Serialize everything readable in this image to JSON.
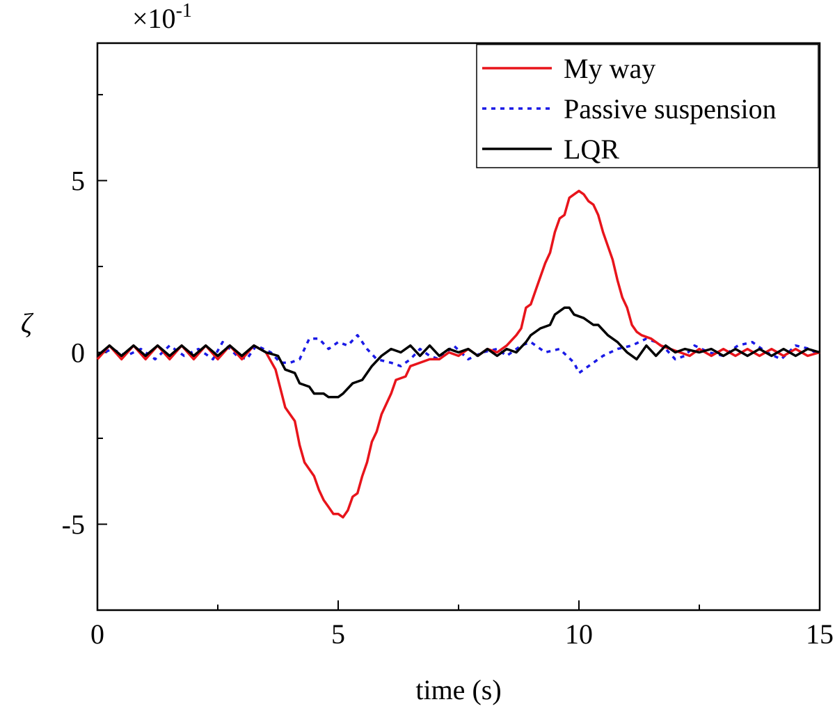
{
  "chart_data": {
    "type": "line",
    "title": "",
    "xlabel": "time (s)",
    "ylabel": "ζ",
    "y_multiplier_base": "×10",
    "y_multiplier_exp": "-1",
    "xlim": [
      0,
      15
    ],
    "ylim": [
      -7.5,
      9.0
    ],
    "x_ticks": [
      0,
      5,
      10,
      15
    ],
    "x_tick_labels": [
      "0",
      "5",
      "10",
      "15"
    ],
    "x_minor_ticks": [
      2.5,
      7.5,
      12.5
    ],
    "y_ticks": [
      -5,
      0,
      5
    ],
    "y_tick_labels": [
      "-5",
      "0",
      "5"
    ],
    "y_minor_ticks": [
      -2.5,
      2.5,
      7.5
    ],
    "grid": false,
    "legend_position": "top-right",
    "series": [
      {
        "name": "My way",
        "color": "#e8141b",
        "style": "solid",
        "points": [
          [
            0,
            -0.2
          ],
          [
            0.25,
            0.2
          ],
          [
            0.5,
            -0.2
          ],
          [
            0.75,
            0.2
          ],
          [
            1.0,
            -0.2
          ],
          [
            1.25,
            0.2
          ],
          [
            1.5,
            -0.2
          ],
          [
            1.75,
            0.2
          ],
          [
            2.0,
            -0.2
          ],
          [
            2.25,
            0.2
          ],
          [
            2.5,
            -0.2
          ],
          [
            2.75,
            0.2
          ],
          [
            3.0,
            -0.2
          ],
          [
            3.25,
            0.2
          ],
          [
            3.5,
            0.0
          ],
          [
            3.7,
            -0.5
          ],
          [
            3.9,
            -1.6
          ],
          [
            4.0,
            -1.8
          ],
          [
            4.1,
            -2.0
          ],
          [
            4.2,
            -2.7
          ],
          [
            4.3,
            -3.2
          ],
          [
            4.4,
            -3.4
          ],
          [
            4.5,
            -3.6
          ],
          [
            4.6,
            -4.0
          ],
          [
            4.7,
            -4.3
          ],
          [
            4.8,
            -4.5
          ],
          [
            4.9,
            -4.7
          ],
          [
            5.0,
            -4.7
          ],
          [
            5.1,
            -4.8
          ],
          [
            5.2,
            -4.6
          ],
          [
            5.3,
            -4.2
          ],
          [
            5.4,
            -4.1
          ],
          [
            5.5,
            -3.6
          ],
          [
            5.6,
            -3.2
          ],
          [
            5.7,
            -2.6
          ],
          [
            5.8,
            -2.3
          ],
          [
            5.9,
            -1.8
          ],
          [
            6.0,
            -1.5
          ],
          [
            6.1,
            -1.2
          ],
          [
            6.2,
            -0.8
          ],
          [
            6.4,
            -0.7
          ],
          [
            6.5,
            -0.4
          ],
          [
            6.7,
            -0.3
          ],
          [
            6.9,
            -0.2
          ],
          [
            7.1,
            -0.2
          ],
          [
            7.3,
            0.0
          ],
          [
            7.5,
            -0.1
          ],
          [
            7.7,
            0.1
          ],
          [
            7.9,
            -0.1
          ],
          [
            8.1,
            0.1
          ],
          [
            8.3,
            0.0
          ],
          [
            8.5,
            0.2
          ],
          [
            8.7,
            0.5
          ],
          [
            8.8,
            0.7
          ],
          [
            8.9,
            1.3
          ],
          [
            9.0,
            1.4
          ],
          [
            9.1,
            1.8
          ],
          [
            9.2,
            2.2
          ],
          [
            9.3,
            2.6
          ],
          [
            9.4,
            2.9
          ],
          [
            9.5,
            3.5
          ],
          [
            9.6,
            3.9
          ],
          [
            9.7,
            4.0
          ],
          [
            9.8,
            4.5
          ],
          [
            9.9,
            4.6
          ],
          [
            10.0,
            4.7
          ],
          [
            10.1,
            4.6
          ],
          [
            10.2,
            4.4
          ],
          [
            10.3,
            4.3
          ],
          [
            10.4,
            4.0
          ],
          [
            10.5,
            3.5
          ],
          [
            10.6,
            3.1
          ],
          [
            10.7,
            2.7
          ],
          [
            10.8,
            2.1
          ],
          [
            10.9,
            1.6
          ],
          [
            11.0,
            1.3
          ],
          [
            11.1,
            0.8
          ],
          [
            11.2,
            0.6
          ],
          [
            11.3,
            0.5
          ],
          [
            11.5,
            0.4
          ],
          [
            11.7,
            0.2
          ],
          [
            11.9,
            0.1
          ],
          [
            12.1,
            0.0
          ],
          [
            12.3,
            -0.1
          ],
          [
            12.5,
            0.1
          ],
          [
            12.75,
            -0.1
          ],
          [
            13.0,
            0.1
          ],
          [
            13.25,
            -0.1
          ],
          [
            13.5,
            0.1
          ],
          [
            13.75,
            -0.1
          ],
          [
            14.0,
            0.1
          ],
          [
            14.25,
            -0.1
          ],
          [
            14.5,
            0.1
          ],
          [
            14.75,
            -0.1
          ],
          [
            15.0,
            0.0
          ]
        ]
      },
      {
        "name": "Passive suspension",
        "color": "#1a1ae6",
        "style": "dotted",
        "points": [
          [
            0,
            -0.1
          ],
          [
            0.3,
            0.1
          ],
          [
            0.6,
            -0.1
          ],
          [
            0.9,
            0.1
          ],
          [
            1.2,
            -0.2
          ],
          [
            1.5,
            0.2
          ],
          [
            1.8,
            -0.1
          ],
          [
            2.1,
            0.1
          ],
          [
            2.4,
            -0.2
          ],
          [
            2.6,
            0.3
          ],
          [
            2.9,
            -0.1
          ],
          [
            3.1,
            -0.2
          ],
          [
            3.3,
            0.2
          ],
          [
            3.6,
            0.0
          ],
          [
            3.8,
            -0.3
          ],
          [
            4.0,
            -0.3
          ],
          [
            4.2,
            -0.2
          ],
          [
            4.4,
            0.4
          ],
          [
            4.6,
            0.4
          ],
          [
            4.8,
            0.1
          ],
          [
            5.0,
            0.3
          ],
          [
            5.2,
            0.2
          ],
          [
            5.4,
            0.5
          ],
          [
            5.6,
            0.1
          ],
          [
            5.8,
            -0.2
          ],
          [
            6.1,
            -0.3
          ],
          [
            6.3,
            -0.4
          ],
          [
            6.5,
            -0.2
          ],
          [
            6.7,
            0.1
          ],
          [
            6.9,
            -0.1
          ],
          [
            7.1,
            -0.2
          ],
          [
            7.4,
            0.2
          ],
          [
            7.7,
            -0.2
          ],
          [
            8.0,
            0.0
          ],
          [
            8.3,
            0.1
          ],
          [
            8.5,
            -0.1
          ],
          [
            8.8,
            0.2
          ],
          [
            9.0,
            0.3
          ],
          [
            9.3,
            0.0
          ],
          [
            9.6,
            0.1
          ],
          [
            9.9,
            -0.3
          ],
          [
            10.0,
            -0.6
          ],
          [
            10.2,
            -0.4
          ],
          [
            10.5,
            -0.1
          ],
          [
            10.8,
            0.1
          ],
          [
            11.1,
            0.2
          ],
          [
            11.4,
            0.4
          ],
          [
            11.6,
            0.3
          ],
          [
            11.8,
            0.1
          ],
          [
            12.0,
            -0.2
          ],
          [
            12.2,
            -0.1
          ],
          [
            12.4,
            0.2
          ],
          [
            12.7,
            0.0
          ],
          [
            13.0,
            -0.1
          ],
          [
            13.3,
            0.2
          ],
          [
            13.6,
            0.3
          ],
          [
            13.9,
            0.0
          ],
          [
            14.2,
            -0.2
          ],
          [
            14.5,
            0.2
          ],
          [
            14.8,
            0.1
          ],
          [
            15.0,
            -0.1
          ]
        ]
      },
      {
        "name": "LQR",
        "color": "#000000",
        "style": "solid",
        "points": [
          [
            0,
            -0.1
          ],
          [
            0.25,
            0.2
          ],
          [
            0.5,
            -0.1
          ],
          [
            0.75,
            0.2
          ],
          [
            1.0,
            -0.1
          ],
          [
            1.25,
            0.2
          ],
          [
            1.5,
            -0.1
          ],
          [
            1.75,
            0.2
          ],
          [
            2.0,
            -0.1
          ],
          [
            2.25,
            0.2
          ],
          [
            2.5,
            -0.1
          ],
          [
            2.75,
            0.2
          ],
          [
            3.0,
            -0.1
          ],
          [
            3.25,
            0.2
          ],
          [
            3.5,
            0.0
          ],
          [
            3.75,
            -0.1
          ],
          [
            3.9,
            -0.5
          ],
          [
            4.1,
            -0.6
          ],
          [
            4.2,
            -0.9
          ],
          [
            4.4,
            -1.0
          ],
          [
            4.5,
            -1.2
          ],
          [
            4.7,
            -1.2
          ],
          [
            4.8,
            -1.3
          ],
          [
            5.0,
            -1.3
          ],
          [
            5.1,
            -1.2
          ],
          [
            5.3,
            -0.9
          ],
          [
            5.5,
            -0.8
          ],
          [
            5.7,
            -0.4
          ],
          [
            5.9,
            -0.1
          ],
          [
            6.1,
            0.1
          ],
          [
            6.3,
            0.0
          ],
          [
            6.5,
            0.2
          ],
          [
            6.7,
            -0.1
          ],
          [
            6.9,
            0.2
          ],
          [
            7.1,
            -0.1
          ],
          [
            7.3,
            0.1
          ],
          [
            7.5,
            0.0
          ],
          [
            7.7,
            0.1
          ],
          [
            7.9,
            -0.1
          ],
          [
            8.1,
            0.1
          ],
          [
            8.3,
            -0.1
          ],
          [
            8.5,
            0.1
          ],
          [
            8.7,
            0.0
          ],
          [
            8.9,
            0.3
          ],
          [
            9.0,
            0.5
          ],
          [
            9.2,
            0.7
          ],
          [
            9.4,
            0.8
          ],
          [
            9.5,
            1.1
          ],
          [
            9.7,
            1.3
          ],
          [
            9.8,
            1.3
          ],
          [
            9.9,
            1.1
          ],
          [
            10.1,
            1.0
          ],
          [
            10.3,
            0.8
          ],
          [
            10.4,
            0.8
          ],
          [
            10.6,
            0.5
          ],
          [
            10.8,
            0.3
          ],
          [
            11.0,
            0.0
          ],
          [
            11.2,
            -0.2
          ],
          [
            11.4,
            0.2
          ],
          [
            11.6,
            -0.1
          ],
          [
            11.8,
            0.2
          ],
          [
            12.0,
            0.0
          ],
          [
            12.2,
            0.1
          ],
          [
            12.5,
            0.0
          ],
          [
            12.75,
            0.1
          ],
          [
            13.0,
            -0.1
          ],
          [
            13.25,
            0.1
          ],
          [
            13.5,
            -0.1
          ],
          [
            13.75,
            0.1
          ],
          [
            14.0,
            -0.1
          ],
          [
            14.25,
            0.1
          ],
          [
            14.5,
            -0.1
          ],
          [
            14.75,
            0.1
          ],
          [
            15.0,
            0.0
          ]
        ]
      }
    ]
  }
}
